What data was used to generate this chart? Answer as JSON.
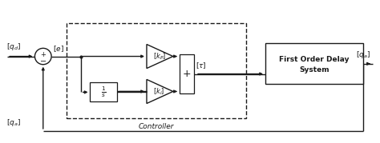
{
  "bg_color": "#ffffff",
  "line_color": "#1a1a1a",
  "figsize": [
    4.74,
    1.79
  ],
  "dpi": 100,
  "labels": {
    "qd": "$[q_d]$",
    "qa_in": "$[q_a]$",
    "e": "$[e]$",
    "kp": "$[k_P]$",
    "ki": "$[k_i]$",
    "tau": "$[\\tau]$",
    "qa_out": "$[q_a]$",
    "integrator": "$\\frac{1}{s}$",
    "sum_plus": "+",
    "controller": "Controller",
    "fods_line1": "First Order Delay",
    "fods_line2": "System"
  }
}
